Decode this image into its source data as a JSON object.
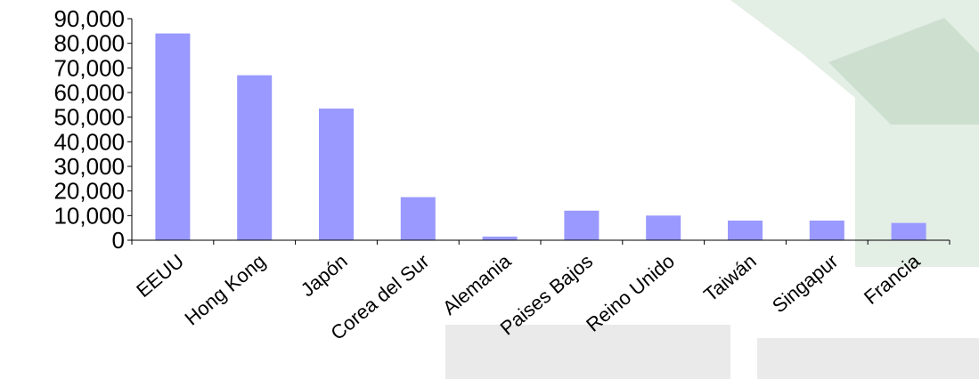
{
  "chart_data": {
    "type": "bar",
    "categories": [
      "EEUU",
      "Hong Kong",
      "Japón",
      "Corea del Sur",
      "Alemania",
      "Paises Bajos",
      "Reino Unido",
      "Taiwán",
      "Singapur",
      "Francia"
    ],
    "values": [
      84000,
      67000,
      53500,
      17500,
      1500,
      12000,
      10000,
      8000,
      8000,
      7000
    ],
    "ylim": [
      0,
      90000
    ],
    "yticks": [
      0,
      10000,
      20000,
      30000,
      40000,
      50000,
      60000,
      70000,
      80000,
      90000
    ],
    "ytick_labels": [
      "0",
      "10,000",
      "20,000",
      "30,000",
      "40,000",
      "50,000",
      "60,000",
      "70,000",
      "80,000",
      "90,000"
    ],
    "title": "",
    "xlabel": "",
    "ylabel": "",
    "grid": false,
    "bar_color": "#9999ff",
    "legend": "none"
  }
}
